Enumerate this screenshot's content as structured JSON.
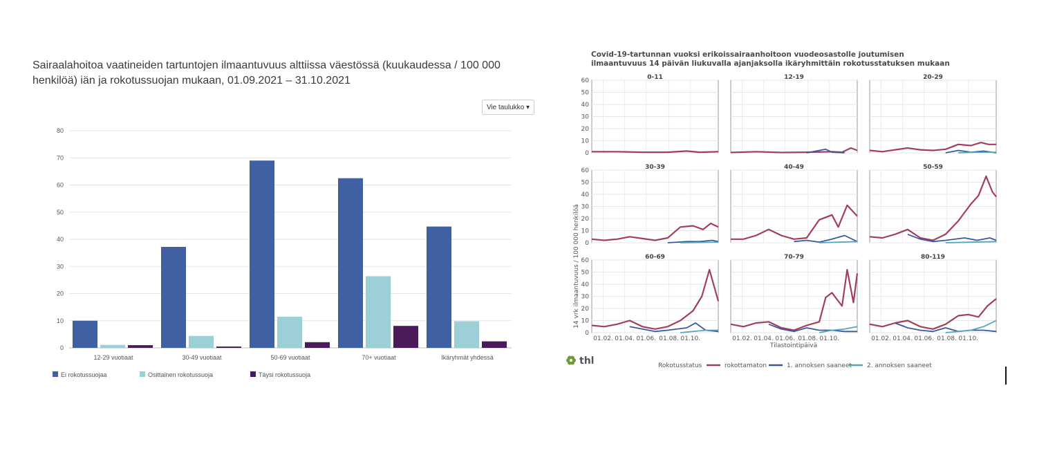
{
  "left_chart": {
    "title": "Sairaalahoitoa vaatineiden tartuntojen ilmaantuvuus alttiissa väestössä (kuukaudessa / 100 000 henkilöä) iän ja rokotussuojan mukaan, 01.09.2021 – 31.10.2021",
    "export_button": "Vie taulukko",
    "export_icon": "caret-down-icon"
  },
  "right_chart": {
    "title_line1": "Covid-19-tartunnan vuoksi erikoissairaanhoitoon vuodeosastolle joutumisen",
    "title_line2": "ilmaantuvuus 14 päivän liukuvalla ajanjaksolla ikäryhmittäin rokotusstatuksen mukaan",
    "logo_text": "thl",
    "logo_icon": "thl-flower-icon"
  },
  "chart_data": [
    {
      "type": "bar",
      "title": "Sairaalahoitoa vaatineiden tartuntojen ilmaantuvuus alttiissa väestössä (kuukaudessa / 100 000 henkilöä) iän ja rokotussuojan mukaan, 01.09.2021 – 31.10.2021",
      "categories": [
        "12-29 vuotiaat",
        "30-49 vuotiaat",
        "50-69 vuotiaat",
        "70+ vuotiaat",
        "Ikäryhmät yhdessä"
      ],
      "series": [
        {
          "name": "Ei rokotussuojaa",
          "color": "#4160a4",
          "values": [
            10,
            37.2,
            69,
            62.5,
            44.7
          ]
        },
        {
          "name": "Osittainen rokotussuoja",
          "color": "#9dd0d6",
          "values": [
            1.1,
            4.4,
            11.5,
            26.4,
            9.8
          ]
        },
        {
          "name": "Täysi rokotussuoja",
          "color": "#4b1a58",
          "values": [
            1.0,
            0.5,
            2.1,
            8.1,
            2.4
          ]
        }
      ],
      "ylim": [
        0,
        80
      ],
      "yticks": [
        0,
        10,
        20,
        30,
        40,
        50,
        60,
        70,
        80
      ],
      "grid": true,
      "legend": "bottom-left"
    },
    {
      "type": "line",
      "title": "Covid-19-tartunnan vuoksi erikoissairaanhoitoon vuodeosastolle joutumisen ilmaantuvuus 14 päivän liukuvalla ajanjaksolla ikäryhmittäin rokotusstatuksen mukaan",
      "ylabel": "14 vrk ilmaantuvuus / 100 000 henkilöä",
      "xlabel": "Tilastointipäivä",
      "x_ticks": [
        "01.02.",
        "01.04.",
        "01.06.",
        "01.08.",
        "01.10."
      ],
      "x_tick_pos": [
        0.09,
        0.26,
        0.43,
        0.61,
        0.78
      ],
      "yticks": [
        0,
        10,
        20,
        30,
        40,
        50,
        60
      ],
      "ylim": [
        0,
        60
      ],
      "legend_title": "Rokotusstatus",
      "legend_position": "bottom",
      "series_names": [
        "rokottamaton",
        "1. annoksen saaneet",
        "2. annoksen saaneet"
      ],
      "series_colors": [
        "#a33d5f",
        "#3a58a0",
        "#55a6b8"
      ],
      "panels": [
        {
          "label": "0-11",
          "rokottamaton": [
            [
              0,
              1
            ],
            [
              0.2,
              1
            ],
            [
              0.4,
              0.5
            ],
            [
              0.6,
              0.5
            ],
            [
              0.75,
              1.5
            ],
            [
              0.85,
              0.5
            ],
            [
              1,
              1
            ]
          ],
          "annos1": [],
          "annos2": []
        },
        {
          "label": "12-19",
          "rokottamaton": [
            [
              0,
              0.3
            ],
            [
              0.2,
              1
            ],
            [
              0.4,
              0.3
            ],
            [
              0.6,
              0.5
            ],
            [
              0.8,
              1
            ],
            [
              0.88,
              0.5
            ],
            [
              0.95,
              4
            ],
            [
              1,
              2
            ]
          ],
          "annos1": [
            [
              0.6,
              0
            ],
            [
              0.75,
              3
            ],
            [
              0.8,
              0.5
            ],
            [
              0.9,
              0
            ]
          ],
          "annos2": []
        },
        {
          "label": "20-29",
          "rokottamaton": [
            [
              0,
              2
            ],
            [
              0.1,
              1
            ],
            [
              0.2,
              2.5
            ],
            [
              0.3,
              4
            ],
            [
              0.4,
              2.5
            ],
            [
              0.5,
              2
            ],
            [
              0.6,
              3
            ],
            [
              0.7,
              7
            ],
            [
              0.8,
              6
            ],
            [
              0.88,
              8.5
            ],
            [
              0.94,
              7
            ],
            [
              1,
              7
            ]
          ],
          "annos1": [
            [
              0.6,
              0
            ],
            [
              0.7,
              2
            ],
            [
              0.8,
              0.5
            ],
            [
              0.9,
              1.5
            ],
            [
              1,
              0
            ]
          ],
          "annos2": [
            [
              0.7,
              0
            ],
            [
              0.85,
              0.5
            ],
            [
              1,
              0.5
            ]
          ]
        },
        {
          "label": "30-39",
          "rokottamaton": [
            [
              0,
              3
            ],
            [
              0.1,
              2
            ],
            [
              0.2,
              3
            ],
            [
              0.3,
              5
            ],
            [
              0.4,
              3.5
            ],
            [
              0.5,
              2
            ],
            [
              0.6,
              4
            ],
            [
              0.7,
              13
            ],
            [
              0.8,
              14
            ],
            [
              0.88,
              11
            ],
            [
              0.94,
              16
            ],
            [
              1,
              13
            ]
          ],
          "annos1": [
            [
              0.6,
              0
            ],
            [
              0.75,
              1
            ],
            [
              0.85,
              1
            ],
            [
              0.95,
              2
            ],
            [
              1,
              1
            ]
          ],
          "annos2": [
            [
              0.7,
              0
            ],
            [
              1,
              0.5
            ]
          ]
        },
        {
          "label": "40-49",
          "rokottamaton": [
            [
              0,
              3
            ],
            [
              0.1,
              3
            ],
            [
              0.2,
              6
            ],
            [
              0.3,
              11
            ],
            [
              0.4,
              6
            ],
            [
              0.5,
              3
            ],
            [
              0.6,
              4
            ],
            [
              0.7,
              19
            ],
            [
              0.8,
              23
            ],
            [
              0.85,
              13
            ],
            [
              0.92,
              31
            ],
            [
              1,
              22
            ]
          ],
          "annos1": [
            [
              0.5,
              1
            ],
            [
              0.6,
              2
            ],
            [
              0.7,
              0.5
            ],
            [
              0.8,
              3
            ],
            [
              0.9,
              6
            ],
            [
              1,
              1
            ]
          ],
          "annos2": [
            [
              0.7,
              0
            ],
            [
              1,
              1
            ]
          ]
        },
        {
          "label": "50-59",
          "rokottamaton": [
            [
              0,
              5
            ],
            [
              0.1,
              4
            ],
            [
              0.2,
              7
            ],
            [
              0.3,
              11
            ],
            [
              0.4,
              4
            ],
            [
              0.5,
              2
            ],
            [
              0.6,
              7
            ],
            [
              0.7,
              18
            ],
            [
              0.8,
              32
            ],
            [
              0.86,
              39
            ],
            [
              0.92,
              55
            ],
            [
              0.97,
              42
            ],
            [
              1,
              38
            ]
          ],
          "annos1": [
            [
              0.3,
              7
            ],
            [
              0.4,
              3
            ],
            [
              0.5,
              1
            ],
            [
              0.6,
              2
            ],
            [
              0.75,
              4
            ],
            [
              0.85,
              2
            ],
            [
              0.95,
              4
            ],
            [
              1,
              2
            ]
          ],
          "annos2": [
            [
              0.6,
              0
            ],
            [
              1,
              1
            ]
          ]
        },
        {
          "label": "60-69",
          "rokottamaton": [
            [
              0,
              6
            ],
            [
              0.1,
              5
            ],
            [
              0.2,
              7
            ],
            [
              0.3,
              10
            ],
            [
              0.4,
              5
            ],
            [
              0.5,
              3
            ],
            [
              0.6,
              5
            ],
            [
              0.7,
              10
            ],
            [
              0.8,
              18
            ],
            [
              0.87,
              30
            ],
            [
              0.93,
              52
            ],
            [
              1,
              26
            ]
          ],
          "annos1": [
            [
              0.3,
              5
            ],
            [
              0.4,
              3
            ],
            [
              0.5,
              1
            ],
            [
              0.6,
              2
            ],
            [
              0.75,
              4
            ],
            [
              0.82,
              8
            ],
            [
              0.9,
              2
            ],
            [
              1,
              1
            ]
          ],
          "annos2": [
            [
              0.7,
              0
            ],
            [
              0.9,
              2
            ],
            [
              1,
              2
            ]
          ]
        },
        {
          "label": "70-79",
          "rokottamaton": [
            [
              0,
              7
            ],
            [
              0.1,
              5
            ],
            [
              0.2,
              8
            ],
            [
              0.3,
              9
            ],
            [
              0.4,
              4
            ],
            [
              0.5,
              2
            ],
            [
              0.6,
              6
            ],
            [
              0.7,
              9
            ],
            [
              0.75,
              29
            ],
            [
              0.8,
              33
            ],
            [
              0.88,
              22
            ],
            [
              0.92,
              52
            ],
            [
              0.97,
              25
            ],
            [
              1,
              49
            ]
          ],
          "annos1": [
            [
              0.3,
              7
            ],
            [
              0.4,
              3
            ],
            [
              0.5,
              1
            ],
            [
              0.6,
              4
            ],
            [
              0.7,
              2
            ],
            [
              0.8,
              2
            ],
            [
              0.9,
              1
            ],
            [
              1,
              1
            ]
          ],
          "annos2": [
            [
              0.7,
              0
            ],
            [
              0.8,
              2
            ],
            [
              0.9,
              3
            ],
            [
              1,
              5
            ]
          ]
        },
        {
          "label": "80-119",
          "rokottamaton": [
            [
              0,
              7
            ],
            [
              0.1,
              5
            ],
            [
              0.2,
              8
            ],
            [
              0.3,
              10
            ],
            [
              0.4,
              5
            ],
            [
              0.5,
              3
            ],
            [
              0.6,
              7
            ],
            [
              0.7,
              14
            ],
            [
              0.78,
              15
            ],
            [
              0.86,
              13
            ],
            [
              0.93,
              22
            ],
            [
              1,
              28
            ]
          ],
          "annos1": [
            [
              0.2,
              8
            ],
            [
              0.3,
              4
            ],
            [
              0.4,
              2
            ],
            [
              0.5,
              1
            ],
            [
              0.6,
              4
            ],
            [
              0.7,
              1
            ],
            [
              0.8,
              2
            ],
            [
              0.9,
              2
            ],
            [
              1,
              1
            ]
          ],
          "annos2": [
            [
              0.6,
              0
            ],
            [
              0.8,
              2
            ],
            [
              0.9,
              5
            ],
            [
              1,
              10
            ]
          ]
        }
      ]
    }
  ]
}
